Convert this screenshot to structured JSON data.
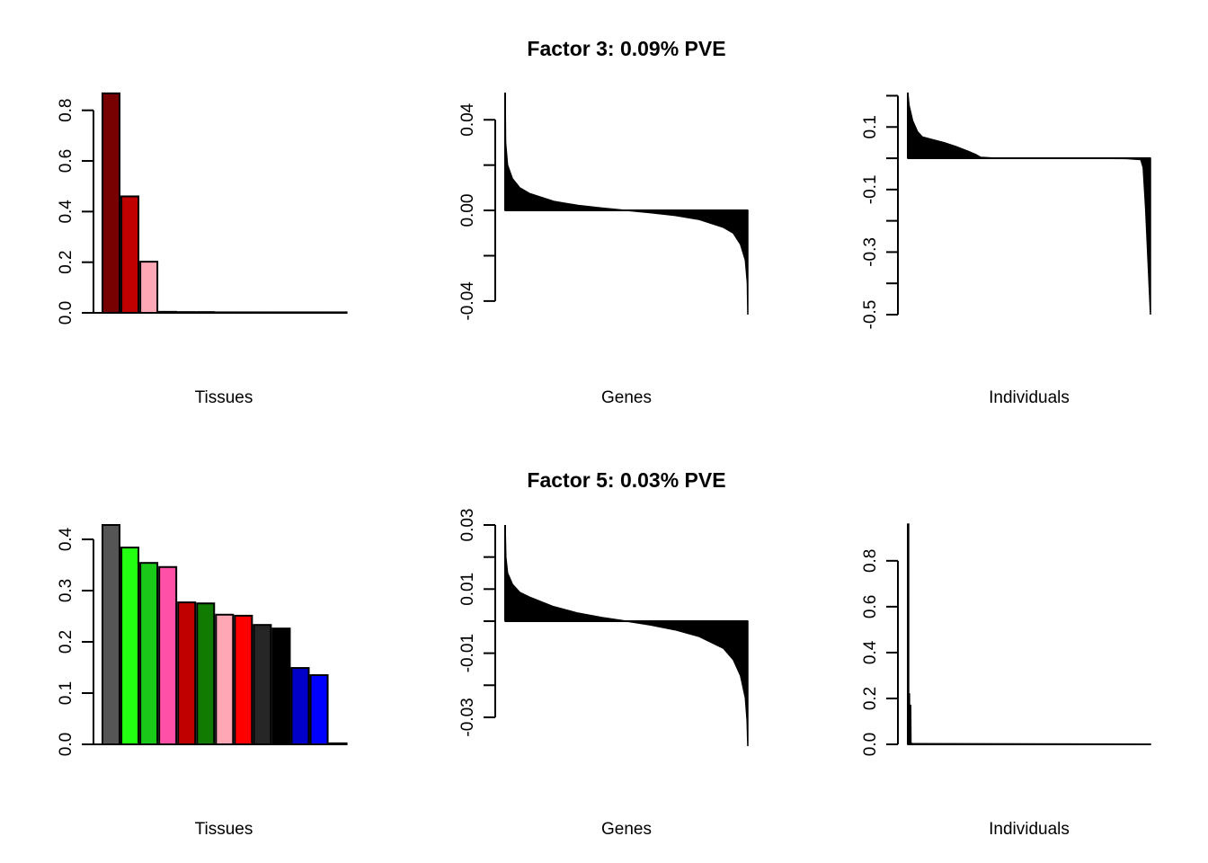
{
  "chart_data": [
    {
      "type": "bar",
      "row_title": "Factor 3: 0.09% PVE",
      "xlabel": "Tissues",
      "ylabel": "",
      "ylim": [
        0,
        0.87
      ],
      "yticks": [
        0.0,
        0.2,
        0.4,
        0.6,
        0.8
      ],
      "ytick_labels": [
        "0.0",
        "0.2",
        "0.4",
        "0.6",
        "0.8"
      ],
      "values": [
        0.867,
        0.46,
        0.202,
        0.004,
        0.003,
        0.003,
        0.002,
        0.002,
        0.002,
        0.002,
        0.002,
        0.002,
        0.002
      ],
      "colors": [
        "#770000",
        "#C00000",
        "#FFA7B5",
        "#000000",
        "#000000",
        "#000000",
        "#000000",
        "#000000",
        "#000000",
        "#000000",
        "#000000",
        "#000000",
        "#000000"
      ]
    },
    {
      "type": "area",
      "row_title": "Factor 3: 0.09% PVE",
      "xlabel": "Genes",
      "ylabel": "",
      "ylim": [
        -0.046,
        0.052
      ],
      "yticks": [
        -0.04,
        -0.02,
        0.0,
        0.02,
        0.04
      ],
      "ytick_labels": [
        "-0.04",
        "",
        "0.00",
        "",
        "0.04"
      ],
      "profile_x": [
        0,
        0.002,
        0.01,
        0.03,
        0.06,
        0.1,
        0.2,
        0.3,
        0.4,
        0.5,
        0.6,
        0.7,
        0.8,
        0.9,
        0.94,
        0.97,
        0.99,
        0.998,
        1
      ],
      "profile_y": [
        0.052,
        0.03,
        0.02,
        0.014,
        0.01,
        0.0075,
        0.004,
        0.0022,
        0.001,
        0.0,
        -0.001,
        -0.0022,
        -0.004,
        -0.0075,
        -0.01,
        -0.015,
        -0.022,
        -0.032,
        -0.046
      ]
    },
    {
      "type": "area",
      "row_title": "Factor 3: 0.09% PVE",
      "xlabel": "Individuals",
      "ylabel": "",
      "ylim": [
        -0.5,
        0.21
      ],
      "yticks": [
        -0.5,
        -0.4,
        -0.3,
        -0.2,
        -0.1,
        0.0,
        0.1,
        0.2
      ],
      "ytick_labels": [
        "-0.5",
        "",
        "-0.3",
        "",
        "-0.1",
        "",
        "0.1",
        ""
      ],
      "profile_x": [
        0,
        0.005,
        0.02,
        0.04,
        0.06,
        0.1,
        0.15,
        0.2,
        0.25,
        0.28,
        0.3,
        0.35,
        0.5,
        0.7,
        0.9,
        0.96,
        0.97,
        0.98,
        0.99,
        1
      ],
      "profile_y": [
        0.21,
        0.17,
        0.12,
        0.085,
        0.068,
        0.06,
        0.05,
        0.037,
        0.022,
        0.012,
        0.003,
        0.001,
        0.0,
        0.0,
        -0.001,
        -0.004,
        -0.03,
        -0.16,
        -0.33,
        -0.5
      ]
    },
    {
      "type": "bar",
      "row_title": "Factor 5: 0.03% PVE",
      "xlabel": "Tissues",
      "ylabel": "",
      "ylim": [
        0,
        0.428
      ],
      "yticks": [
        0.0,
        0.1,
        0.2,
        0.3,
        0.4
      ],
      "ytick_labels": [
        "0.0",
        "0.1",
        "0.2",
        "0.3",
        "0.4"
      ],
      "values": [
        0.428,
        0.384,
        0.354,
        0.346,
        0.277,
        0.275,
        0.253,
        0.251,
        0.233,
        0.226,
        0.149,
        0.135,
        0.002
      ],
      "colors": [
        "#555555",
        "#22FF11",
        "#1AC81A",
        "#FF50A8",
        "#C00000",
        "#117A00",
        "#FFA7B5",
        "#FF0000",
        "#262626",
        "#000000",
        "#0000C8",
        "#0000FF",
        "#000000"
      ]
    },
    {
      "type": "area",
      "row_title": "Factor 5: 0.03% PVE",
      "xlabel": "Genes",
      "ylabel": "",
      "ylim": [
        -0.039,
        0.03
      ],
      "yticks": [
        -0.03,
        -0.02,
        -0.01,
        0.0,
        0.01,
        0.02,
        0.03
      ],
      "ytick_labels": [
        "-0.03",
        "",
        "-0.01",
        "",
        "0.01",
        "",
        "0.03"
      ],
      "profile_x": [
        0,
        0.003,
        0.01,
        0.03,
        0.06,
        0.1,
        0.2,
        0.3,
        0.4,
        0.5,
        0.6,
        0.7,
        0.8,
        0.9,
        0.94,
        0.97,
        0.99,
        0.997,
        1
      ],
      "profile_y": [
        0.03,
        0.02,
        0.015,
        0.0115,
        0.009,
        0.0075,
        0.0045,
        0.0025,
        0.0011,
        0.0,
        -0.0012,
        -0.0027,
        -0.0048,
        -0.0085,
        -0.012,
        -0.017,
        -0.024,
        -0.031,
        -0.039
      ]
    },
    {
      "type": "area",
      "row_title": "Factor 5: 0.03% PVE",
      "xlabel": "Individuals",
      "ylabel": "",
      "ylim": [
        0,
        0.96
      ],
      "yticks": [
        0.0,
        0.2,
        0.4,
        0.6,
        0.8
      ],
      "ytick_labels": [
        "0.0",
        "0.2",
        "0.4",
        "0.6",
        "0.8"
      ],
      "profile_x": [
        0,
        0.0035,
        0.0036,
        0.007,
        0.0071,
        0.012,
        0.013,
        0.02,
        1
      ],
      "profile_y": [
        0.96,
        0.96,
        0.22,
        0.22,
        0.17,
        0.17,
        0.005,
        0.003,
        0.001
      ]
    }
  ],
  "titles": {
    "row1": "Factor 3: 0.09% PVE",
    "row2": "Factor 5: 0.03% PVE"
  }
}
